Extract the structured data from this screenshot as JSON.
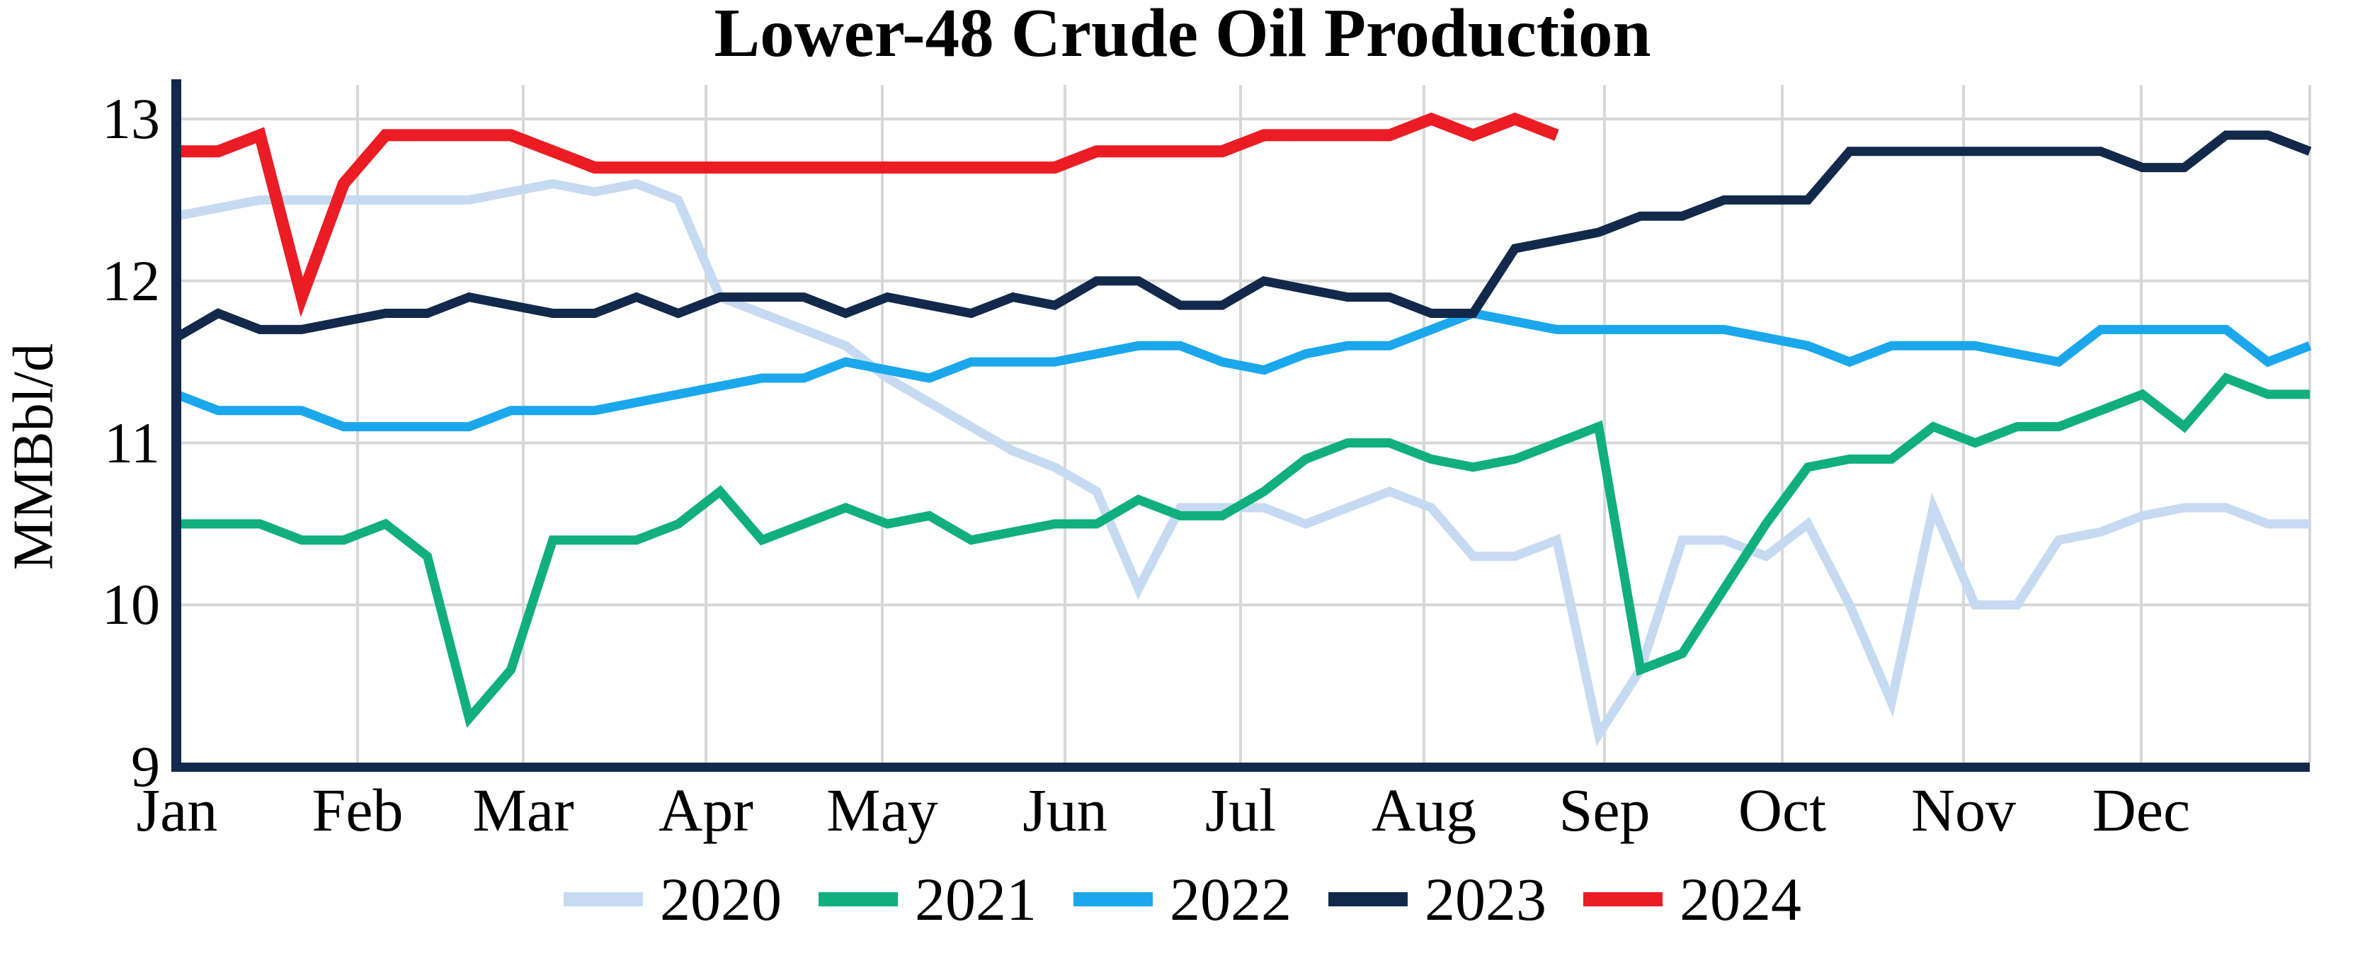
{
  "page": {
    "title": "Lower-48 Crude Oil Production",
    "y_axis_label": "MMBbl/d"
  },
  "chart_data": {
    "type": "line",
    "title": "Lower-48 Crude Oil Production",
    "xlabel": "",
    "ylabel": "MMBbl/d",
    "ylim": [
      9,
      13.2
    ],
    "yticks": [
      13,
      12,
      11,
      10,
      9
    ],
    "x_tick_labels": [
      "Jan",
      "Feb",
      "Mar",
      "Apr",
      "May",
      "Jun",
      "Jul",
      "Aug",
      "Sep",
      "Oct",
      "Nov",
      "Dec"
    ],
    "x_unit": "weekly points, Jan through Dec",
    "grid": true,
    "grid_color": "#d8d8d8",
    "axis_color": "#12294b",
    "legend_position": "bottom",
    "series": [
      {
        "name": "2020",
        "color": "#c6dbf2",
        "width": 13,
        "values": [
          12.4,
          12.45,
          12.5,
          12.5,
          12.5,
          12.5,
          12.5,
          12.5,
          12.55,
          12.6,
          12.55,
          12.6,
          12.5,
          11.9,
          11.8,
          11.7,
          11.6,
          11.4,
          11.25,
          11.1,
          10.95,
          10.85,
          10.7,
          10.1,
          10.6,
          10.6,
          10.6,
          10.5,
          10.6,
          10.7,
          10.6,
          10.3,
          10.3,
          10.4,
          9.2,
          9.6,
          10.4,
          10.4,
          10.3,
          10.5,
          10.0,
          9.4,
          10.6,
          10.0,
          10.0,
          10.4,
          10.45,
          10.55,
          10.6,
          10.6,
          10.5,
          10.5
        ]
      },
      {
        "name": "2021",
        "color": "#11af7d",
        "width": 13,
        "values": [
          10.5,
          10.5,
          10.5,
          10.4,
          10.4,
          10.5,
          10.3,
          9.3,
          9.6,
          10.4,
          10.4,
          10.4,
          10.5,
          10.7,
          10.4,
          10.5,
          10.6,
          10.5,
          10.55,
          10.4,
          10.45,
          10.5,
          10.5,
          10.65,
          10.55,
          10.55,
          10.7,
          10.9,
          11.0,
          11.0,
          10.9,
          10.85,
          10.9,
          11.0,
          11.1,
          9.6,
          9.7,
          10.1,
          10.5,
          10.85,
          10.9,
          10.9,
          11.1,
          11.0,
          11.1,
          11.1,
          11.2,
          11.3,
          11.1,
          11.4,
          11.3,
          11.3
        ]
      },
      {
        "name": "2022",
        "color": "#1ba7ec",
        "width": 13,
        "values": [
          11.3,
          11.2,
          11.2,
          11.2,
          11.1,
          11.1,
          11.1,
          11.1,
          11.2,
          11.2,
          11.2,
          11.25,
          11.3,
          11.35,
          11.4,
          11.4,
          11.5,
          11.45,
          11.4,
          11.5,
          11.5,
          11.5,
          11.55,
          11.6,
          11.6,
          11.5,
          11.45,
          11.55,
          11.6,
          11.6,
          11.7,
          11.8,
          11.75,
          11.7,
          11.7,
          11.7,
          11.7,
          11.7,
          11.65,
          11.6,
          11.5,
          11.6,
          11.6,
          11.6,
          11.55,
          11.5,
          11.7,
          11.7,
          11.7,
          11.7,
          11.5,
          11.6
        ]
      },
      {
        "name": "2023",
        "color": "#12294b",
        "width": 13,
        "values": [
          11.65,
          11.8,
          11.7,
          11.7,
          11.75,
          11.8,
          11.8,
          11.9,
          11.85,
          11.8,
          11.8,
          11.9,
          11.8,
          11.9,
          11.9,
          11.9,
          11.8,
          11.9,
          11.85,
          11.8,
          11.9,
          11.85,
          12.0,
          12.0,
          11.85,
          11.85,
          12.0,
          11.95,
          11.9,
          11.9,
          11.8,
          11.8,
          12.2,
          12.25,
          12.3,
          12.4,
          12.4,
          12.5,
          12.5,
          12.5,
          12.8,
          12.8,
          12.8,
          12.8,
          12.8,
          12.8,
          12.8,
          12.7,
          12.7,
          12.9,
          12.9,
          12.8
        ]
      },
      {
        "name": "2024",
        "color": "#ec1c24",
        "width": 17,
        "values": [
          12.8,
          12.8,
          12.9,
          11.9,
          12.6,
          12.9,
          12.9,
          12.9,
          12.9,
          12.8,
          12.7,
          12.7,
          12.7,
          12.7,
          12.7,
          12.7,
          12.7,
          12.7,
          12.7,
          12.7,
          12.7,
          12.7,
          12.8,
          12.8,
          12.8,
          12.8,
          12.9,
          12.9,
          12.9,
          12.9,
          13.0,
          12.9,
          13.0,
          12.9
        ]
      }
    ]
  }
}
